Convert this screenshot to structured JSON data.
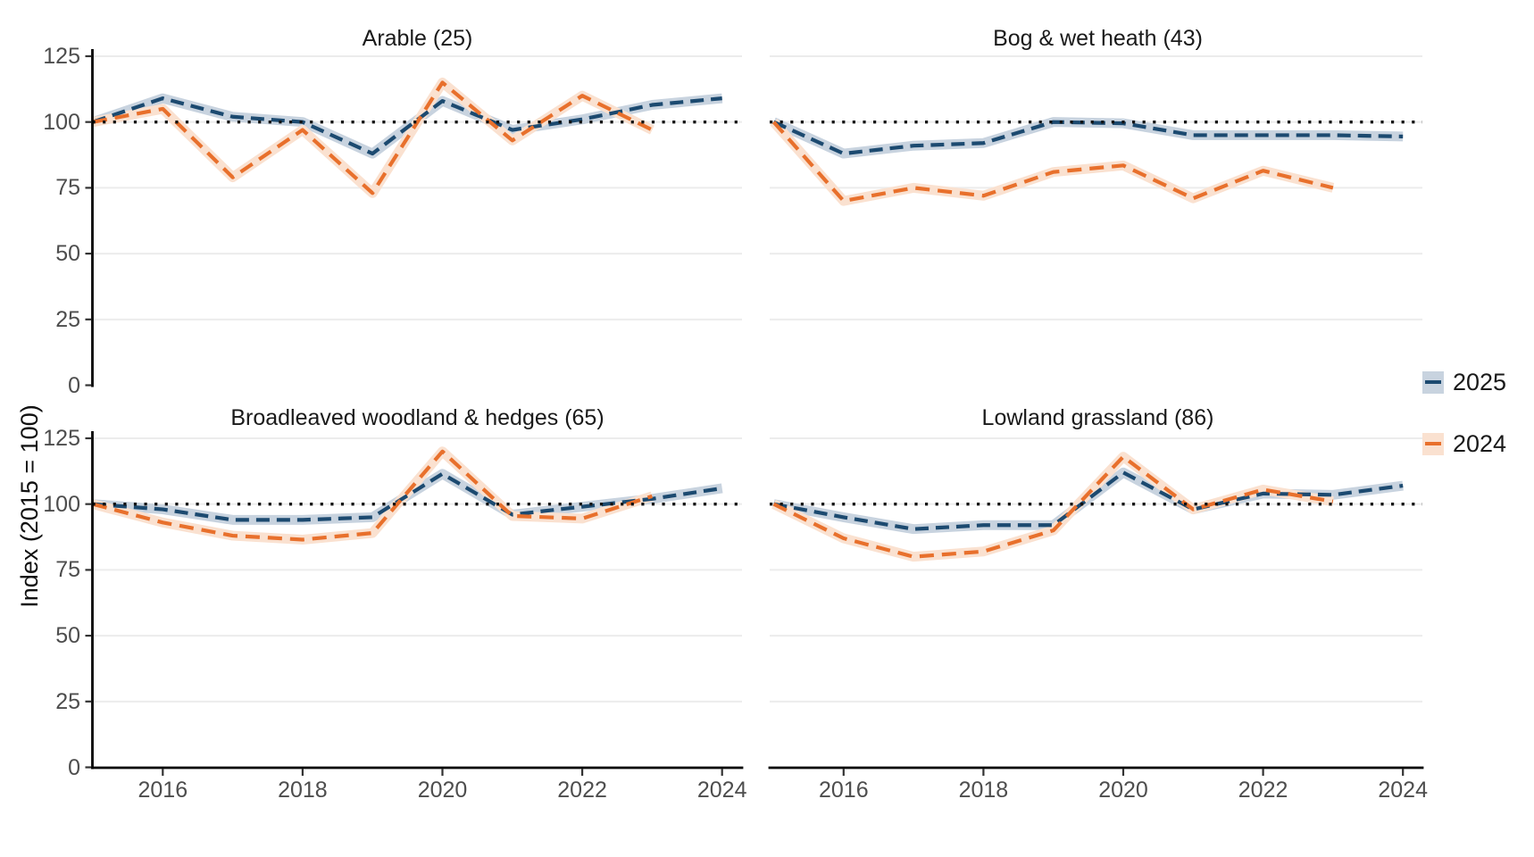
{
  "figure": {
    "y_axis_title": "Index (2015 = 100)",
    "y_ticks": [
      0,
      25,
      50,
      75,
      100,
      125
    ],
    "x_ticks": [
      2016,
      2018,
      2020,
      2022,
      2024
    ],
    "grid_color": "#ececec",
    "axis_color": "#000000",
    "tick_color": "#333333",
    "reference_line_color": "#111111"
  },
  "legend": {
    "items": [
      {
        "name": "2025",
        "label": "2025",
        "line_color": "#1c4a70",
        "ribbon_color": "#c8d3df"
      },
      {
        "name": "2024",
        "label": "2024",
        "line_color": "#e8702c",
        "ribbon_color": "#fae1d0"
      }
    ]
  },
  "chart_data": [
    {
      "type": "line",
      "title": "Arable (25)",
      "ylabel": "Index (2015 = 100)",
      "ylim": [
        0,
        125
      ],
      "reference_line": 100,
      "grid": true,
      "series": [
        {
          "name": "2025",
          "x": [
            2015,
            2016,
            2017,
            2018,
            2019,
            2020,
            2021,
            2022,
            2023,
            2024
          ],
          "values": [
            100,
            109,
            102,
            100,
            88,
            108,
            97,
            101,
            106.5,
            109
          ]
        },
        {
          "name": "2024",
          "x": [
            2015,
            2016,
            2017,
            2018,
            2019,
            2020,
            2021,
            2022,
            2023
          ],
          "values": [
            100,
            105,
            79,
            97,
            73,
            115,
            93,
            110,
            97
          ]
        }
      ]
    },
    {
      "type": "line",
      "title": "Bog & wet heath (43)",
      "ylabel": "Index (2015 = 100)",
      "ylim": [
        0,
        125
      ],
      "reference_line": 100,
      "grid": true,
      "series": [
        {
          "name": "2025",
          "x": [
            2015,
            2016,
            2017,
            2018,
            2019,
            2020,
            2021,
            2022,
            2023,
            2024
          ],
          "values": [
            100,
            88,
            91,
            92,
            100,
            99.5,
            95,
            95,
            95,
            94.5
          ]
        },
        {
          "name": "2024",
          "x": [
            2015,
            2016,
            2017,
            2018,
            2019,
            2020,
            2021,
            2022,
            2023
          ],
          "values": [
            100,
            70,
            75,
            72,
            81,
            83.5,
            71,
            81.5,
            75
          ]
        }
      ]
    },
    {
      "type": "line",
      "title": "Broadleaved woodland & hedges (65)",
      "ylabel": "Index (2015 = 100)",
      "ylim": [
        0,
        125
      ],
      "reference_line": 100,
      "grid": true,
      "series": [
        {
          "name": "2025",
          "x": [
            2015,
            2016,
            2017,
            2018,
            2019,
            2020,
            2021,
            2022,
            2023,
            2024
          ],
          "values": [
            100,
            98,
            94,
            94,
            95,
            111.5,
            96,
            99,
            102,
            106
          ]
        },
        {
          "name": "2024",
          "x": [
            2015,
            2016,
            2017,
            2018,
            2019,
            2020,
            2021,
            2022,
            2023
          ],
          "values": [
            100,
            93,
            88,
            86.5,
            89,
            120,
            95.5,
            94.5,
            103
          ]
        }
      ]
    },
    {
      "type": "line",
      "title": "Lowland grassland (86)",
      "ylabel": "Index (2015 = 100)",
      "ylim": [
        0,
        125
      ],
      "reference_line": 100,
      "grid": true,
      "series": [
        {
          "name": "2025",
          "x": [
            2015,
            2016,
            2017,
            2018,
            2019,
            2020,
            2021,
            2022,
            2023,
            2024
          ],
          "values": [
            100,
            95,
            90.5,
            92,
            92,
            112,
            98,
            104,
            103.5,
            107
          ]
        },
        {
          "name": "2024",
          "x": [
            2015,
            2016,
            2017,
            2018,
            2019,
            2020,
            2021,
            2022,
            2023
          ],
          "values": [
            100,
            87,
            80,
            82,
            90,
            118,
            98,
            105.5,
            101
          ]
        }
      ]
    }
  ]
}
